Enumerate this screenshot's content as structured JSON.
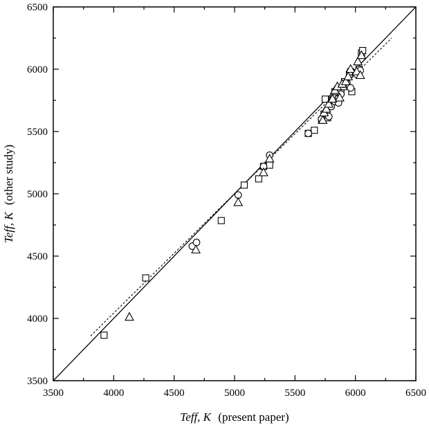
{
  "chart_data": {
    "type": "scatter",
    "xlabel": {
      "main": "Teff, K",
      "suffix": "(present paper)"
    },
    "ylabel": {
      "main": "Teff, K",
      "suffix": "(other study)"
    },
    "xlim": [
      3500,
      6500
    ],
    "ylim": [
      3500,
      6500
    ],
    "x_ticks": [
      3500,
      4000,
      4500,
      5000,
      5500,
      6000,
      6500
    ],
    "y_ticks": [
      3500,
      4000,
      4500,
      5000,
      5500,
      6000,
      6500
    ],
    "x_tick_labels": [
      "3500",
      "4000",
      "4500",
      "5000",
      "5500",
      "6000",
      "6500"
    ],
    "y_tick_labels": [
      "3500",
      "4000",
      "4500",
      "5000",
      "5500",
      "6000",
      "6500"
    ],
    "grid": false,
    "lines": [
      {
        "style": "solid",
        "x": [
          3500,
          6500
        ],
        "y": [
          3500,
          6500
        ]
      },
      {
        "style": "dotted",
        "x": [
          3810,
          6300
        ],
        "y": [
          3860,
          6250
        ]
      }
    ],
    "series": [
      {
        "marker": "square",
        "points": [
          [
            3920,
            3865
          ],
          [
            4265,
            4325
          ],
          [
            4890,
            4785
          ],
          [
            5080,
            5070
          ],
          [
            5200,
            5120
          ],
          [
            5240,
            5220
          ],
          [
            5290,
            5230
          ],
          [
            5610,
            5485
          ],
          [
            5660,
            5510
          ],
          [
            5720,
            5590
          ],
          [
            5740,
            5640
          ],
          [
            5750,
            5760
          ],
          [
            5770,
            5610
          ],
          [
            5790,
            5710
          ],
          [
            5810,
            5750
          ],
          [
            5820,
            5780
          ],
          [
            5830,
            5820
          ],
          [
            5860,
            5760
          ],
          [
            5870,
            5850
          ],
          [
            5880,
            5820
          ],
          [
            5900,
            5860
          ],
          [
            5910,
            5900
          ],
          [
            5930,
            5880
          ],
          [
            5950,
            5960
          ],
          [
            5960,
            5980
          ],
          [
            5970,
            5820
          ],
          [
            6000,
            5970
          ],
          [
            6030,
            6000
          ],
          [
            6050,
            6130
          ],
          [
            6060,
            6150
          ]
        ]
      },
      {
        "marker": "circle",
        "points": [
          [
            4650,
            4580
          ],
          [
            4685,
            4610
          ],
          [
            5030,
            4990
          ],
          [
            5240,
            5220
          ],
          [
            5290,
            5310
          ],
          [
            5610,
            5485
          ],
          [
            5720,
            5600
          ],
          [
            5780,
            5620
          ],
          [
            5800,
            5700
          ],
          [
            5830,
            5740
          ],
          [
            5860,
            5730
          ],
          [
            5880,
            5800
          ],
          [
            5900,
            5880
          ],
          [
            5960,
            5850
          ],
          [
            6010,
            5960
          ],
          [
            6040,
            5990
          ]
        ]
      },
      {
        "marker": "triangle",
        "points": [
          [
            4130,
            4010
          ],
          [
            4680,
            4550
          ],
          [
            5030,
            4930
          ],
          [
            5240,
            5170
          ],
          [
            5290,
            5280
          ],
          [
            5730,
            5590
          ],
          [
            5740,
            5650
          ],
          [
            5760,
            5680
          ],
          [
            5780,
            5720
          ],
          [
            5810,
            5760
          ],
          [
            5830,
            5830
          ],
          [
            5850,
            5860
          ],
          [
            5870,
            5770
          ],
          [
            5890,
            5880
          ],
          [
            5920,
            5900
          ],
          [
            5940,
            5940
          ],
          [
            5960,
            6000
          ],
          [
            6010,
            5980
          ],
          [
            6020,
            6060
          ],
          [
            6040,
            5950
          ],
          [
            6050,
            6110
          ]
        ]
      }
    ]
  }
}
